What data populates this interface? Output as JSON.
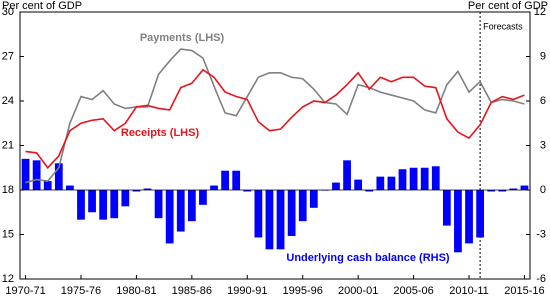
{
  "chart_data": {
    "type": "combo",
    "y_label": "Per cent of GDP",
    "y2_label": "Per cent of GDP",
    "categories": [
      "1970-71",
      null,
      null,
      null,
      null,
      "1975-76",
      null,
      null,
      null,
      null,
      "1980-81",
      null,
      null,
      null,
      null,
      "1985-86",
      null,
      null,
      null,
      null,
      "1990-91",
      null,
      null,
      null,
      null,
      "1995-96",
      null,
      null,
      null,
      null,
      "2000-01",
      null,
      null,
      null,
      null,
      "2005-06",
      null,
      null,
      null,
      null,
      "2010-11",
      null,
      null,
      null,
      null,
      "2015-16"
    ],
    "ylim": [
      12,
      30
    ],
    "yticks": [
      12,
      15,
      18,
      21,
      24,
      27,
      30
    ],
    "y2lim": [
      -6,
      12
    ],
    "y2ticks": [
      -6,
      -3,
      0,
      3,
      6,
      9,
      12
    ],
    "forecast_label": "Forecasts",
    "forecast_x": 41.5,
    "series": [
      {
        "name": "Payments (LHS)",
        "type": "line",
        "color": "#808080",
        "values": [
          18.5,
          18.7,
          18.6,
          19.5,
          22.5,
          24.3,
          24.1,
          24.7,
          23.8,
          23.5,
          23.6,
          23.6,
          25.8,
          26.7,
          27.5,
          27.4,
          26.9,
          25.0,
          23.2,
          23.0,
          24.3,
          25.6,
          25.9,
          25.9,
          25.6,
          25.5,
          24.8,
          23.9,
          23.8,
          23.1,
          25.1,
          24.9,
          24.6,
          24.4,
          24.2,
          24.0,
          23.4,
          23.2,
          25.1,
          26.0,
          24.6,
          25.3,
          23.9,
          24.1,
          24.0,
          23.8
        ]
      },
      {
        "name": "Receipts (LHS)",
        "type": "line",
        "color": "#e8141b",
        "values": [
          20.6,
          20.5,
          19.5,
          20.3,
          22.0,
          22.5,
          22.7,
          22.8,
          22.0,
          22.5,
          23.6,
          23.7,
          23.5,
          23.4,
          24.9,
          25.2,
          26.1,
          25.6,
          24.6,
          24.3,
          24.1,
          22.6,
          22.0,
          22.1,
          22.9,
          23.6,
          24.0,
          23.9,
          24.4,
          25.1,
          25.9,
          24.8,
          25.6,
          25.3,
          25.6,
          25.6,
          25.0,
          24.9,
          22.8,
          21.9,
          21.5,
          22.4,
          23.9,
          24.3,
          24.1,
          24.4
        ]
      },
      {
        "name": "Underlying cash balance (RHS)",
        "type": "bar",
        "axis": "y2",
        "color": "#0000ff",
        "values": [
          2.1,
          2.0,
          0.6,
          1.8,
          0.3,
          -2.0,
          -1.5,
          -2.0,
          -1.9,
          -1.1,
          -0.1,
          0.1,
          -1.9,
          -3.6,
          -2.8,
          -2.1,
          -1.0,
          0.3,
          1.3,
          1.3,
          -0.1,
          -3.2,
          -4.0,
          -4.0,
          -3.1,
          -2.1,
          -1.2,
          0.0,
          0.5,
          2.0,
          0.7,
          -0.1,
          0.9,
          0.9,
          1.4,
          1.5,
          1.5,
          1.6,
          -2.4,
          -4.2,
          -3.6,
          -3.2,
          -0.1,
          -0.1,
          0.1,
          0.3
        ]
      }
    ]
  }
}
